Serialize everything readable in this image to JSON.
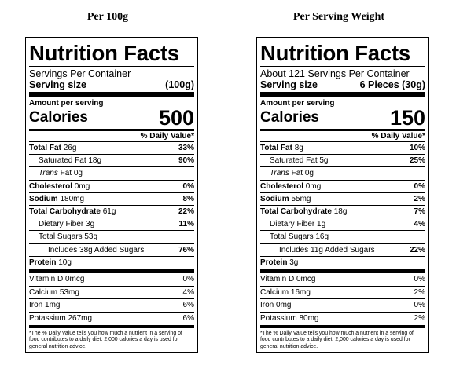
{
  "headings": {
    "left": "Per 100g",
    "right": "Per Serving Weight"
  },
  "panels": [
    {
      "title": "Nutrition Facts",
      "servings_text": "Servings Per Container",
      "serving_size_label": "Serving size",
      "serving_size_value": "(100g)",
      "amount_label": "Amount per serving",
      "calories_label": "Calories",
      "calories_value": "500",
      "dv_header": "% Daily Value*",
      "total_fat": {
        "label": "Total Fat",
        "amount": "26g",
        "dv": "33%"
      },
      "sat_fat": {
        "label": "Saturated Fat 18g",
        "dv": "90%"
      },
      "trans_fat": {
        "label": "Trans",
        "amount": "Fat 0g"
      },
      "cholesterol": {
        "label": "Cholesterol",
        "amount": "0mg",
        "dv": "0%"
      },
      "sodium": {
        "label": "Sodium",
        "amount": "180mg",
        "dv": "8%"
      },
      "total_carb": {
        "label": "Total Carbohydrate",
        "amount": "61g",
        "dv": "22%"
      },
      "fiber": {
        "label": "Dietary Fiber 3g",
        "dv": "11%"
      },
      "sugars": {
        "label": "Total Sugars 53g"
      },
      "added_sugars": {
        "label": "Includes 38g Added Sugars",
        "dv": "76%"
      },
      "protein": {
        "label": "Protein",
        "amount": "10g"
      },
      "vitamin_d": {
        "label": "Vitamin D 0mcg",
        "dv": "0%"
      },
      "calcium": {
        "label": "Calcium 53mg",
        "dv": "4%"
      },
      "iron": {
        "label": "Iron 1mg",
        "dv": "6%"
      },
      "potassium": {
        "label": "Potassium 267mg",
        "dv": "6%"
      },
      "footnote": "*The % Daily Value tells you how much a nutrient in a serving of food contributes to a daily diet. 2,000 calories a day is used for general nutrition advice."
    },
    {
      "title": "Nutrition Facts",
      "servings_text": "About 121 Servings Per Container",
      "serving_size_label": "Serving size",
      "serving_size_value": "6 Pieces (30g)",
      "amount_label": "Amount per serving",
      "calories_label": "Calories",
      "calories_value": "150",
      "dv_header": "% Daily Value*",
      "total_fat": {
        "label": "Total Fat",
        "amount": "8g",
        "dv": "10%"
      },
      "sat_fat": {
        "label": "Saturated Fat 5g",
        "dv": "25%"
      },
      "trans_fat": {
        "label": "Trans",
        "amount": "Fat 0g"
      },
      "cholesterol": {
        "label": "Cholesterol",
        "amount": "0mg",
        "dv": "0%"
      },
      "sodium": {
        "label": "Sodium",
        "amount": "55mg",
        "dv": "2%"
      },
      "total_carb": {
        "label": "Total Carbohydrate",
        "amount": "18g",
        "dv": "7%"
      },
      "fiber": {
        "label": "Dietary Fiber 1g",
        "dv": "4%"
      },
      "sugars": {
        "label": "Total Sugars 16g"
      },
      "added_sugars": {
        "label": "Includes 11g Added Sugars",
        "dv": "22%"
      },
      "protein": {
        "label": "Protein",
        "amount": "3g"
      },
      "vitamin_d": {
        "label": "Vitamin D 0mcg",
        "dv": "0%"
      },
      "calcium": {
        "label": "Calcium 16mg",
        "dv": "2%"
      },
      "iron": {
        "label": "Iron 0mg",
        "dv": "0%"
      },
      "potassium": {
        "label": "Potassium 80mg",
        "dv": "2%"
      },
      "footnote": "*The % Daily Value tells you how much a nutrient in a serving of food contributes to a daily diet. 2,000 calories a day is used for general nutrition advice."
    }
  ]
}
